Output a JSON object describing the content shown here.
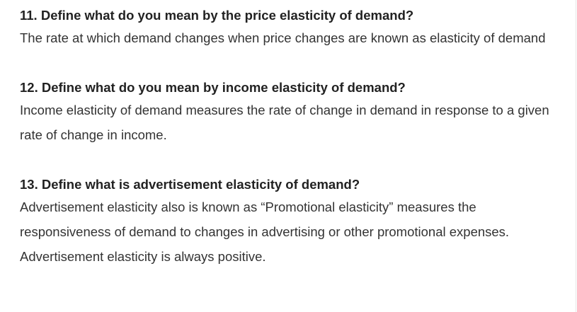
{
  "items": [
    {
      "question": "11. Define what do you mean by the price elasticity of demand?",
      "answer": "The rate at which demand changes when price changes are known as elasticity of demand"
    },
    {
      "question": "12. Define what do you mean by income elasticity of demand?",
      "answer": "Income elasticity of demand measures the rate of change in demand in response to a given rate of change in income."
    },
    {
      "question": "13. Define what is advertisement elasticity of demand?",
      "answer": "Advertisement elasticity also is known as “Promotional elasticity” measures the responsiveness of demand to changes in advertising or other promotional expenses. Advertisement elasticity is always positive."
    }
  ]
}
